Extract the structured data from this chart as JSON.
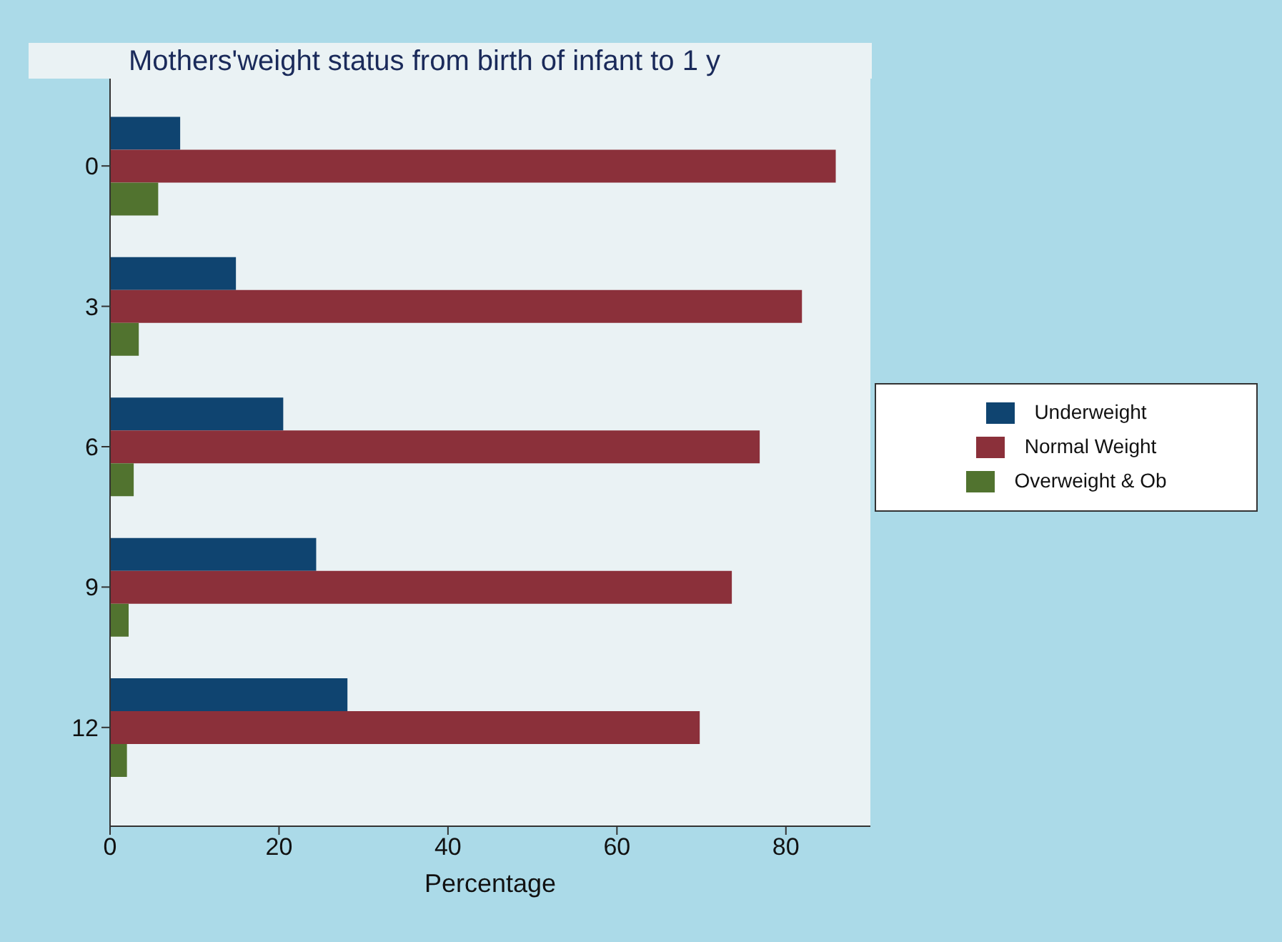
{
  "chart_data": {
    "type": "bar",
    "orientation": "horizontal",
    "title": "Mothers'weight status from birth of infant to 1 y",
    "xlabel": "Percentage",
    "categories": [
      "0",
      "3",
      "6",
      "9",
      "12"
    ],
    "series": [
      {
        "name": "Underweight",
        "color": "#0f4470",
        "values": [
          8.3,
          14.9,
          20.5,
          24.4,
          28.1
        ]
      },
      {
        "name": "Normal Weight",
        "color": "#8b303a",
        "values": [
          85.9,
          81.9,
          76.9,
          73.6,
          69.8
        ]
      },
      {
        "name": "Overweight & Ob",
        "color": "#51732f",
        "values": [
          5.7,
          3.4,
          2.8,
          2.2,
          2.0
        ]
      }
    ],
    "xlim": [
      0,
      90
    ],
    "xticks": [
      0,
      20,
      40,
      60,
      80
    ],
    "grid": false,
    "legend": "right"
  }
}
